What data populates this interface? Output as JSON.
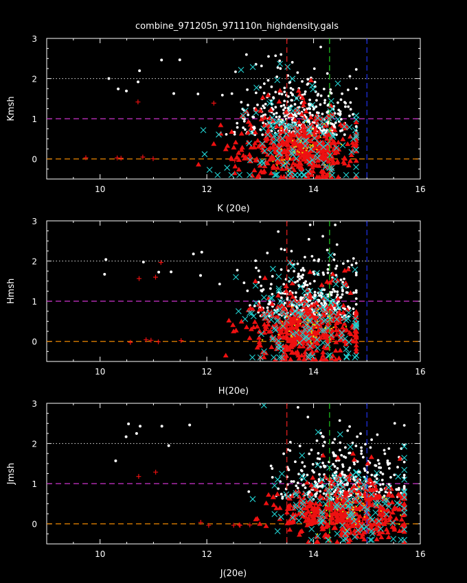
{
  "title": "combine_971205n_971110n_highdensity.gals",
  "colors": {
    "background": "#000000",
    "axes": "#ffffff",
    "white_points": "#ffffff",
    "cyan_points": "#22d3d3",
    "red_triangles": "#ee1111",
    "red_plus": "#ee1111",
    "yellow_points": "#e8e800",
    "line_dotted_white": "#cccccc",
    "line_magenta": "#cc33cc",
    "line_orange": "#ee8800",
    "line_red": "#ee2222",
    "line_green": "#22cc22",
    "line_blue": "#2233ee"
  },
  "chart_data": [
    {
      "type": "scatter",
      "xlabel": "K (20e)",
      "ylabel": "Kmsh",
      "xlim": [
        9,
        16
      ],
      "ylim": [
        -0.5,
        3
      ],
      "xticks": [
        "10",
        "12",
        "14",
        "16"
      ],
      "yticks": [
        "0",
        "1",
        "2",
        "3"
      ],
      "hlines": [
        {
          "y": 2,
          "style": "dotted",
          "color": "#cccccc"
        },
        {
          "y": 1,
          "style": "dashed",
          "color": "#cc33cc"
        },
        {
          "y": 0,
          "style": "dashed",
          "color": "#ee8800"
        }
      ],
      "vlines": [
        {
          "x": 13.5,
          "color": "#ee2222"
        },
        {
          "x": 14.3,
          "color": "#22cc22"
        },
        {
          "x": 15.0,
          "color": "#2233ee"
        }
      ],
      "cloud": {
        "x_center": 13.7,
        "x_spread": 0.55,
        "x_min": 11.6,
        "x_max": 14.8,
        "y_center": 0.5,
        "y_spread": 0.7
      }
    },
    {
      "type": "scatter",
      "xlabel": "H(20e)",
      "ylabel": "Hmsh",
      "xlim": [
        9,
        16
      ],
      "ylim": [
        -0.5,
        3
      ],
      "xticks": [
        "10",
        "12",
        "14",
        "16"
      ],
      "yticks": [
        "0",
        "1",
        "2",
        "3"
      ],
      "hlines": [
        {
          "y": 2,
          "style": "dotted",
          "color": "#cccccc"
        },
        {
          "y": 1,
          "style": "dashed",
          "color": "#cc33cc"
        },
        {
          "y": 0,
          "style": "dashed",
          "color": "#ee8800"
        }
      ],
      "vlines": [
        {
          "x": 13.5,
          "color": "#ee2222"
        },
        {
          "x": 14.3,
          "color": "#22cc22"
        },
        {
          "x": 15.0,
          "color": "#2233ee"
        }
      ],
      "cloud": {
        "x_center": 13.9,
        "x_spread": 0.5,
        "x_min": 11.5,
        "x_max": 14.8,
        "y_center": 0.45,
        "y_spread": 0.7
      }
    },
    {
      "type": "scatter",
      "xlabel": "J(20e)",
      "ylabel": "Jmsh",
      "xlim": [
        9,
        16
      ],
      "ylim": [
        -0.5,
        3
      ],
      "xticks": [
        "10",
        "12",
        "14",
        "16"
      ],
      "yticks": [
        "0",
        "1",
        "2",
        "3"
      ],
      "hlines": [
        {
          "y": 2,
          "style": "dotted",
          "color": "#cccccc"
        },
        {
          "y": 1,
          "style": "dashed",
          "color": "#cc33cc"
        },
        {
          "y": 0,
          "style": "dashed",
          "color": "#ee8800"
        }
      ],
      "vlines": [
        {
          "x": 13.5,
          "color": "#ee2222"
        },
        {
          "x": 14.3,
          "color": "#22cc22"
        },
        {
          "x": 15.0,
          "color": "#2233ee"
        }
      ],
      "cloud": {
        "x_center": 14.6,
        "x_spread": 0.6,
        "x_min": 12.0,
        "x_max": 15.7,
        "y_center": 0.5,
        "y_spread": 0.75
      }
    }
  ]
}
